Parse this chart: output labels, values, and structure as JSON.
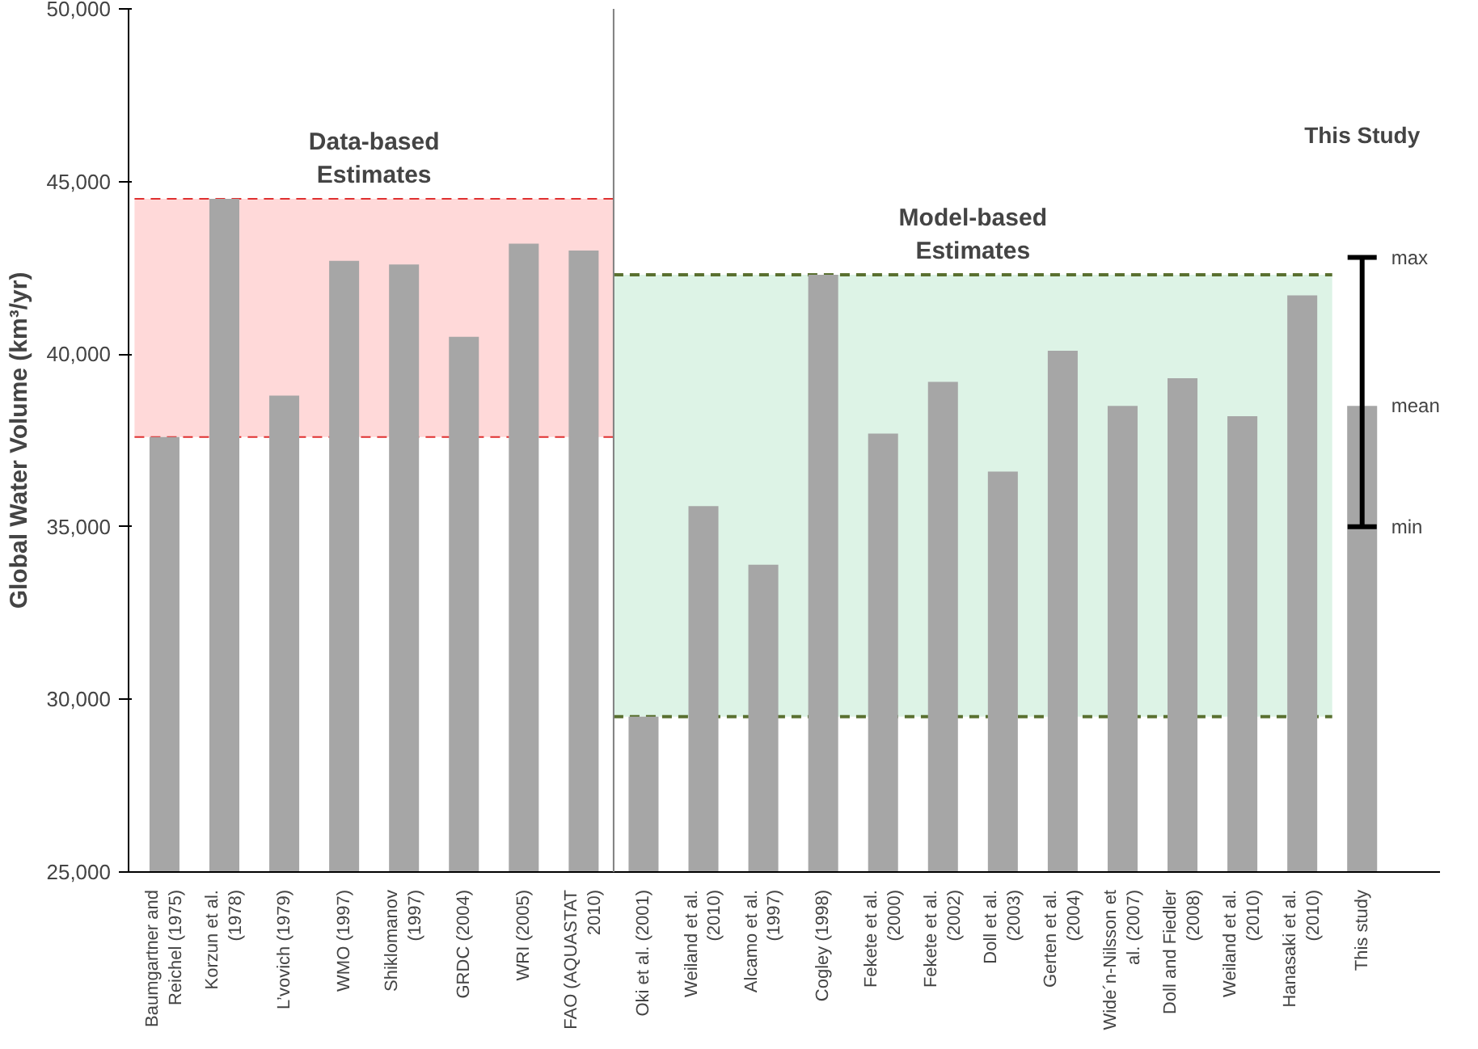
{
  "chart_data": {
    "type": "bar",
    "ylabel": "Global Water Volume (km³/yr)",
    "categories": [
      "Baumgartner and Reichel (1975)",
      "Korzun et al. (1978)",
      "L’vovich (1979)",
      "WMO (1997)",
      "Shiklomanov (1997)",
      "GRDC (2004)",
      "WRI (2005)",
      "FAO (AQUASTAT 2010)",
      "Oki et al. (2001)",
      "Weiland et al. (2010)",
      "Alcamo et al. (1997)",
      "Cogley (1998)",
      "Fekete et al. (2000)",
      "Fekete et al. (2002)",
      "Doll et al. (2003)",
      "Gerten et al. (2004)",
      "Wide´n-Nilsson et al. (2007)",
      "Doll and Fiedler (2008)",
      "Weiland et al. (2010)",
      "Hanasaki et al. (2010)",
      "This study"
    ],
    "values": [
      37600,
      44500,
      38800,
      42700,
      42600,
      40500,
      43200,
      43000,
      29500,
      35600,
      33900,
      42300,
      37700,
      39200,
      36600,
      40100,
      38500,
      39300,
      38200,
      41700,
      38500
    ],
    "color": "#a6a6a6",
    "errors": [
      null,
      null,
      null,
      null,
      null,
      null,
      null,
      null,
      null,
      null,
      null,
      null,
      null,
      null,
      null,
      null,
      null,
      null,
      null,
      null,
      [
        35000,
        42800
      ]
    ],
    "ylim": [
      25000,
      50000
    ],
    "yticks": [
      {
        "value": 25000,
        "label": "25,000"
      },
      {
        "value": 30000,
        "label": "30,000"
      },
      {
        "value": 35000,
        "label": "35,000"
      },
      {
        "value": 40000,
        "label": "40,000"
      },
      {
        "value": 45000,
        "label": "45,000"
      },
      {
        "value": 50000,
        "label": "50,000"
      }
    ],
    "bands": [
      {
        "axis": "y",
        "from": 37600,
        "to": 44500,
        "label": "Data-based Estimates",
        "color": "#ffd0d0"
      },
      {
        "axis": "y",
        "from": 29500,
        "to": 42300,
        "label": "Model-based Estimates",
        "color": "#d5f0e0"
      }
    ],
    "ref_lines": [
      {
        "axis": "y",
        "value": 37600,
        "color": "#e03030",
        "line_style": "dashed"
      },
      {
        "axis": "y",
        "value": 44500,
        "color": "#e03030",
        "line_style": "dashed"
      },
      {
        "axis": "y",
        "value": 29500,
        "color": "#5a7030",
        "line_style": "dashed"
      },
      {
        "axis": "y",
        "value": 42300,
        "color": "#5a7030",
        "line_style": "dashed"
      }
    ],
    "annotations": [
      "This Study",
      {
        "text": "max",
        "x": "This study",
        "y": 42800
      },
      {
        "text": "mean",
        "x": "This study",
        "y": 38500
      },
      {
        "text": "min",
        "x": "This study",
        "y": 35000
      }
    ],
    "grid": false
  }
}
